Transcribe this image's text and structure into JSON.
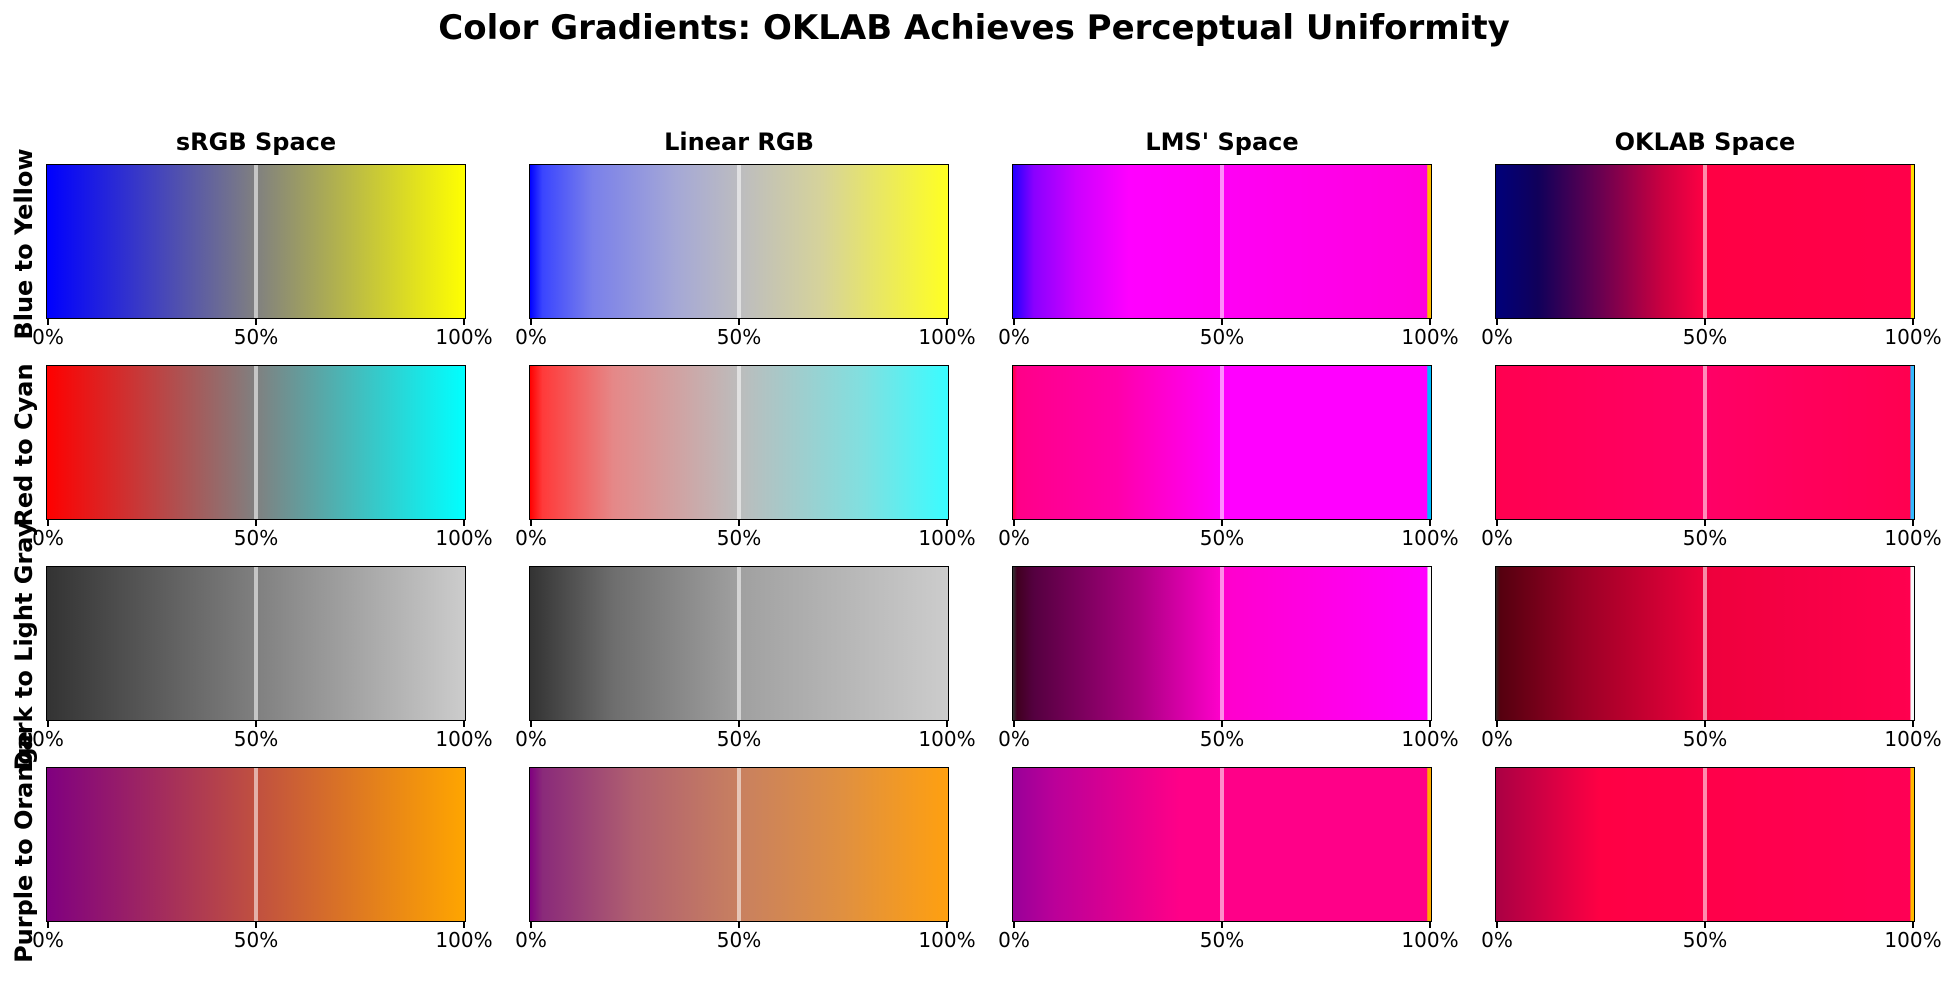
{
  "chart_data": {
    "type": "heatmap",
    "title": "Color Gradients: OKLAB Achieves Perceptual Uniformity",
    "columns": [
      "sRGB Space",
      "Linear RGB",
      "LMS' Space",
      "OKLAB Space"
    ],
    "rows": [
      "Blue to Yellow",
      "Red to Cyan",
      "Dark to Light Gray",
      "Purple to Orange"
    ],
    "x_ticks": [
      0,
      50,
      100
    ],
    "x_tick_labels": [
      "0%",
      "50%",
      "100%"
    ],
    "midline_position": 50,
    "gradients": [
      [
        {
          "stops": [
            [
              0,
              "#0000ff"
            ],
            [
              50,
              "#808080"
            ],
            [
              100,
              "#ffff00"
            ]
          ]
        },
        {
          "stops": [
            [
              0,
              "#0000ff"
            ],
            [
              3,
              "#3a45ff"
            ],
            [
              15,
              "#7a80ea"
            ],
            [
              35,
              "#a5a8d6"
            ],
            [
              50,
              "#bcbcc0"
            ],
            [
              70,
              "#d6d39a"
            ],
            [
              100,
              "#ffff22"
            ]
          ]
        },
        {
          "stops": [
            [
              0,
              "#2200ff"
            ],
            [
              5,
              "#8a00ff"
            ],
            [
              15,
              "#cc00ff"
            ],
            [
              28,
              "#ff00ff"
            ],
            [
              99,
              "#ff00dd"
            ],
            [
              99.2,
              "#ffbb00"
            ],
            [
              100,
              "#ffbb00"
            ]
          ]
        },
        {
          "stops": [
            [
              0,
              "#00007a"
            ],
            [
              10,
              "#10005a"
            ],
            [
              25,
              "#6a0050"
            ],
            [
              40,
              "#cc0040"
            ],
            [
              50,
              "#ff0044"
            ],
            [
              99.2,
              "#ff004a"
            ],
            [
              99.3,
              "#ffdd00"
            ],
            [
              100,
              "#ffdd00"
            ]
          ]
        }
      ],
      [
        {
          "stops": [
            [
              0,
              "#ff0000"
            ],
            [
              50,
              "#808080"
            ],
            [
              100,
              "#00ffff"
            ]
          ]
        },
        {
          "stops": [
            [
              0,
              "#ff0000"
            ],
            [
              3,
              "#ff3a3a"
            ],
            [
              20,
              "#e58888"
            ],
            [
              50,
              "#bcbcbc"
            ],
            [
              80,
              "#80e0e0"
            ],
            [
              100,
              "#3afcff"
            ]
          ]
        },
        {
          "stops": [
            [
              0,
              "#ff0040"
            ],
            [
              1,
              "#ff0088"
            ],
            [
              25,
              "#ff00aa"
            ],
            [
              50,
              "#ff00ff"
            ],
            [
              99,
              "#ff00ff"
            ],
            [
              99.2,
              "#00bbff"
            ],
            [
              100,
              "#00bbff"
            ]
          ]
        },
        {
          "stops": [
            [
              0,
              "#ff0050"
            ],
            [
              50,
              "#ff0066"
            ],
            [
              99,
              "#ff0050"
            ],
            [
              99.3,
              "#33bbff"
            ],
            [
              100,
              "#33bbff"
            ]
          ]
        }
      ],
      [
        {
          "stops": [
            [
              0,
              "#333333"
            ],
            [
              100,
              "#cccccc"
            ]
          ]
        },
        {
          "stops": [
            [
              0,
              "#333333"
            ],
            [
              20,
              "#6e6e6e"
            ],
            [
              50,
              "#a0a0a0"
            ],
            [
              100,
              "#cccccc"
            ]
          ]
        },
        {
          "stops": [
            [
              0,
              "#333333"
            ],
            [
              1,
              "#400020"
            ],
            [
              5,
              "#550040"
            ],
            [
              30,
              "#aa0080"
            ],
            [
              50,
              "#ff00cc"
            ],
            [
              99,
              "#ff00ff"
            ],
            [
              99.3,
              "#f6f6f6"
            ],
            [
              100,
              "#f6f6f6"
            ]
          ]
        },
        {
          "stops": [
            [
              0,
              "#332222"
            ],
            [
              1,
              "#55000f"
            ],
            [
              20,
              "#990025"
            ],
            [
              50,
              "#ee003c"
            ],
            [
              99,
              "#ff004f"
            ],
            [
              99.3,
              "#f8f8f8"
            ],
            [
              100,
              "#f8f8f8"
            ]
          ]
        }
      ],
      [
        {
          "stops": [
            [
              0,
              "#800080"
            ],
            [
              50,
              "#c05040"
            ],
            [
              100,
              "#ffa500"
            ]
          ]
        },
        {
          "stops": [
            [
              0,
              "#800080"
            ],
            [
              3,
              "#8a2a7a"
            ],
            [
              25,
              "#b06070"
            ],
            [
              50,
              "#c88060"
            ],
            [
              75,
              "#e09040"
            ],
            [
              100,
              "#ffa010"
            ]
          ]
        },
        {
          "stops": [
            [
              0,
              "#990099"
            ],
            [
              10,
              "#bb0099"
            ],
            [
              40,
              "#ff0088"
            ],
            [
              99,
              "#ff0088"
            ],
            [
              99.2,
              "#ffaa00"
            ],
            [
              100,
              "#ffaa00"
            ]
          ]
        },
        {
          "stops": [
            [
              0,
              "#aa0044"
            ],
            [
              25,
              "#ff0044"
            ],
            [
              99,
              "#ff0055"
            ],
            [
              99.3,
              "#ffbb00"
            ],
            [
              100,
              "#ffbb00"
            ]
          ]
        }
      ]
    ]
  }
}
